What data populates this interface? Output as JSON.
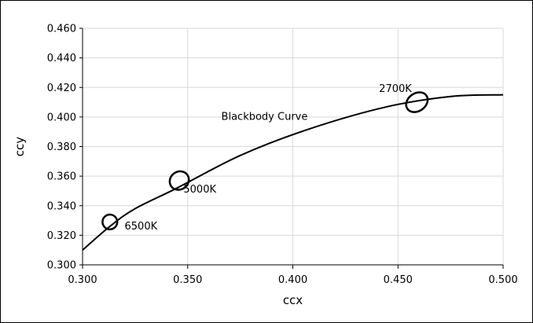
{
  "chart_data": {
    "type": "line",
    "xlabel": "ccx",
    "ylabel": "ccy",
    "xlim": [
      0.3,
      0.5
    ],
    "ylim": [
      0.3,
      0.46
    ],
    "x_ticks": [
      "0.300",
      "0.350",
      "0.400",
      "0.450",
      "0.500"
    ],
    "y_ticks": [
      "0.300",
      "0.320",
      "0.340",
      "0.360",
      "0.380",
      "0.400",
      "0.420",
      "0.440",
      "0.460"
    ],
    "grid": true,
    "series": [
      {
        "name": "Blackbody Curve",
        "color": "#000000",
        "x": [
          0.3,
          0.313,
          0.325,
          0.345,
          0.375,
          0.408,
          0.445,
          0.476,
          0.5
        ],
        "y": [
          0.31,
          0.326,
          0.338,
          0.352,
          0.374,
          0.392,
          0.407,
          0.414,
          0.415
        ]
      }
    ],
    "ellipses": [
      {
        "label": "6500K",
        "x": 0.313,
        "y": 0.329,
        "rx": 0.0035,
        "ry": 0.005
      },
      {
        "label": "5000K",
        "x": 0.346,
        "y": 0.357,
        "rx": 0.0047,
        "ry": 0.006
      },
      {
        "label": "2700K",
        "x": 0.459,
        "y": 0.41,
        "rx": 0.0055,
        "ry": 0.006
      }
    ],
    "annotations": [
      {
        "text": "Blackbody Curve",
        "x": 0.366,
        "y": 0.398
      },
      {
        "text": "6500K",
        "x": 0.32,
        "y": 0.324
      },
      {
        "text": "5000K",
        "x": 0.348,
        "y": 0.349
      },
      {
        "text": "2700K",
        "x": 0.441,
        "y": 0.417
      }
    ]
  }
}
